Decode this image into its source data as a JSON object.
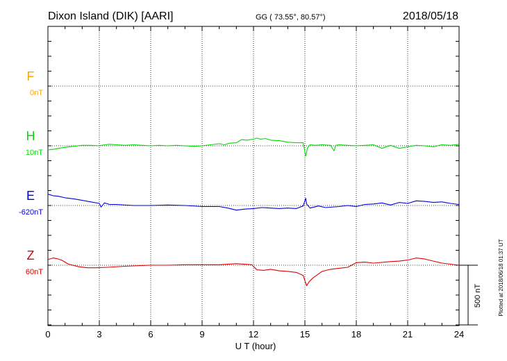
{
  "header": {
    "station": "Dixon Island (DIK)  [AARI]",
    "coords": "GG ( 73.55°,  80.57°)",
    "date": "2018/05/18"
  },
  "footer": {
    "plotted": "Plotted at 2018/06/18 01:37 UT"
  },
  "chart_data": {
    "type": "line",
    "xlabel": "U T (hour)",
    "xlim": [
      0,
      24
    ],
    "x_ticks": [
      0,
      3,
      6,
      9,
      12,
      15,
      18,
      21,
      24
    ],
    "x_tick_labels": [
      "0",
      "3",
      "6",
      "9",
      "12",
      "15",
      "18",
      "21",
      "24"
    ],
    "scale_bar_label": "500 nT",
    "scale_bar_nT": 500,
    "grid": true,
    "series": [
      {
        "name": "F",
        "baseline_label": "0nT",
        "color": "#ffa500",
        "x": [],
        "values": []
      },
      {
        "name": "H",
        "baseline_label": "10nT",
        "color": "#00dd00",
        "x": [
          0,
          0.3,
          0.6,
          1,
          1.5,
          2,
          2.5,
          3,
          3.3,
          3.6,
          4,
          4.5,
          5,
          5.5,
          6,
          6.5,
          7,
          7.5,
          8,
          8.5,
          9,
          9.5,
          10,
          10.3,
          10.6,
          11,
          11.3,
          11.6,
          12,
          12.2,
          12.4,
          12.7,
          13,
          13.5,
          14,
          14.5,
          14.9,
          15.05,
          15.15,
          15.3,
          15.6,
          16,
          16.5,
          16.7,
          16.8,
          17,
          17.5,
          18,
          18.5,
          19,
          19.5,
          20,
          20.5,
          21,
          21.5,
          22,
          22.5,
          23,
          23.5,
          24
        ],
        "values": [
          -40,
          -35,
          -25,
          -15,
          -5,
          5,
          5,
          0,
          10,
          15,
          10,
          5,
          10,
          5,
          0,
          5,
          0,
          5,
          0,
          -5,
          0,
          10,
          20,
          10,
          25,
          30,
          60,
          55,
          65,
          75,
          65,
          70,
          55,
          50,
          35,
          30,
          30,
          -100,
          -20,
          10,
          5,
          10,
          5,
          -50,
          5,
          10,
          5,
          0,
          5,
          10,
          -25,
          5,
          -25,
          -10,
          5,
          0,
          -10,
          10,
          5,
          15
        ]
      },
      {
        "name": "E",
        "baseline_label": "-620nT",
        "color": "#0000dd",
        "x": [
          0,
          0.3,
          0.6,
          1,
          1.5,
          2,
          2.5,
          3,
          3.1,
          3.3,
          3.6,
          4,
          5,
          6,
          7,
          8,
          9,
          10,
          10.5,
          11,
          11.5,
          12,
          12.5,
          13,
          13.5,
          14,
          14.5,
          14.9,
          15.05,
          15.1,
          15.3,
          15.8,
          16.2,
          17,
          17.5,
          18,
          18.5,
          19,
          19.5,
          20,
          20.5,
          21,
          21.5,
          22,
          22.5,
          23,
          23.5,
          24
        ],
        "values": [
          110,
          95,
          90,
          75,
          65,
          50,
          35,
          20,
          -15,
          25,
          10,
          10,
          0,
          0,
          5,
          0,
          -10,
          -10,
          -25,
          -45,
          -35,
          -30,
          -20,
          -25,
          -30,
          -25,
          -30,
          -5,
          70,
          15,
          -25,
          -5,
          -20,
          -10,
          0,
          -10,
          10,
          15,
          25,
          5,
          30,
          20,
          45,
          40,
          30,
          35,
          20,
          10
        ]
      },
      {
        "name": "Z",
        "baseline_label": "60nT",
        "color": "#dd0000",
        "x": [
          0,
          0.3,
          0.5,
          0.8,
          1.2,
          1.8,
          2.3,
          2.8,
          3.5,
          4.5,
          6,
          7,
          8,
          9,
          10,
          11,
          11.9,
          12.2,
          12.6,
          13,
          13.5,
          14,
          14.5,
          14.9,
          15.1,
          15.25,
          15.5,
          16,
          16.5,
          17,
          17.5,
          18,
          18.5,
          19,
          20,
          20.5,
          21,
          21.5,
          22,
          22.5,
          23,
          23.5,
          24
        ],
        "values": [
          55,
          70,
          65,
          50,
          10,
          -15,
          -25,
          -25,
          -20,
          -10,
          0,
          0,
          5,
          5,
          5,
          15,
          5,
          -45,
          -50,
          -40,
          -55,
          -60,
          -70,
          -100,
          -200,
          -160,
          -120,
          -60,
          -40,
          -30,
          -20,
          25,
          30,
          20,
          35,
          40,
          50,
          70,
          60,
          40,
          20,
          10,
          0
        ]
      }
    ]
  }
}
